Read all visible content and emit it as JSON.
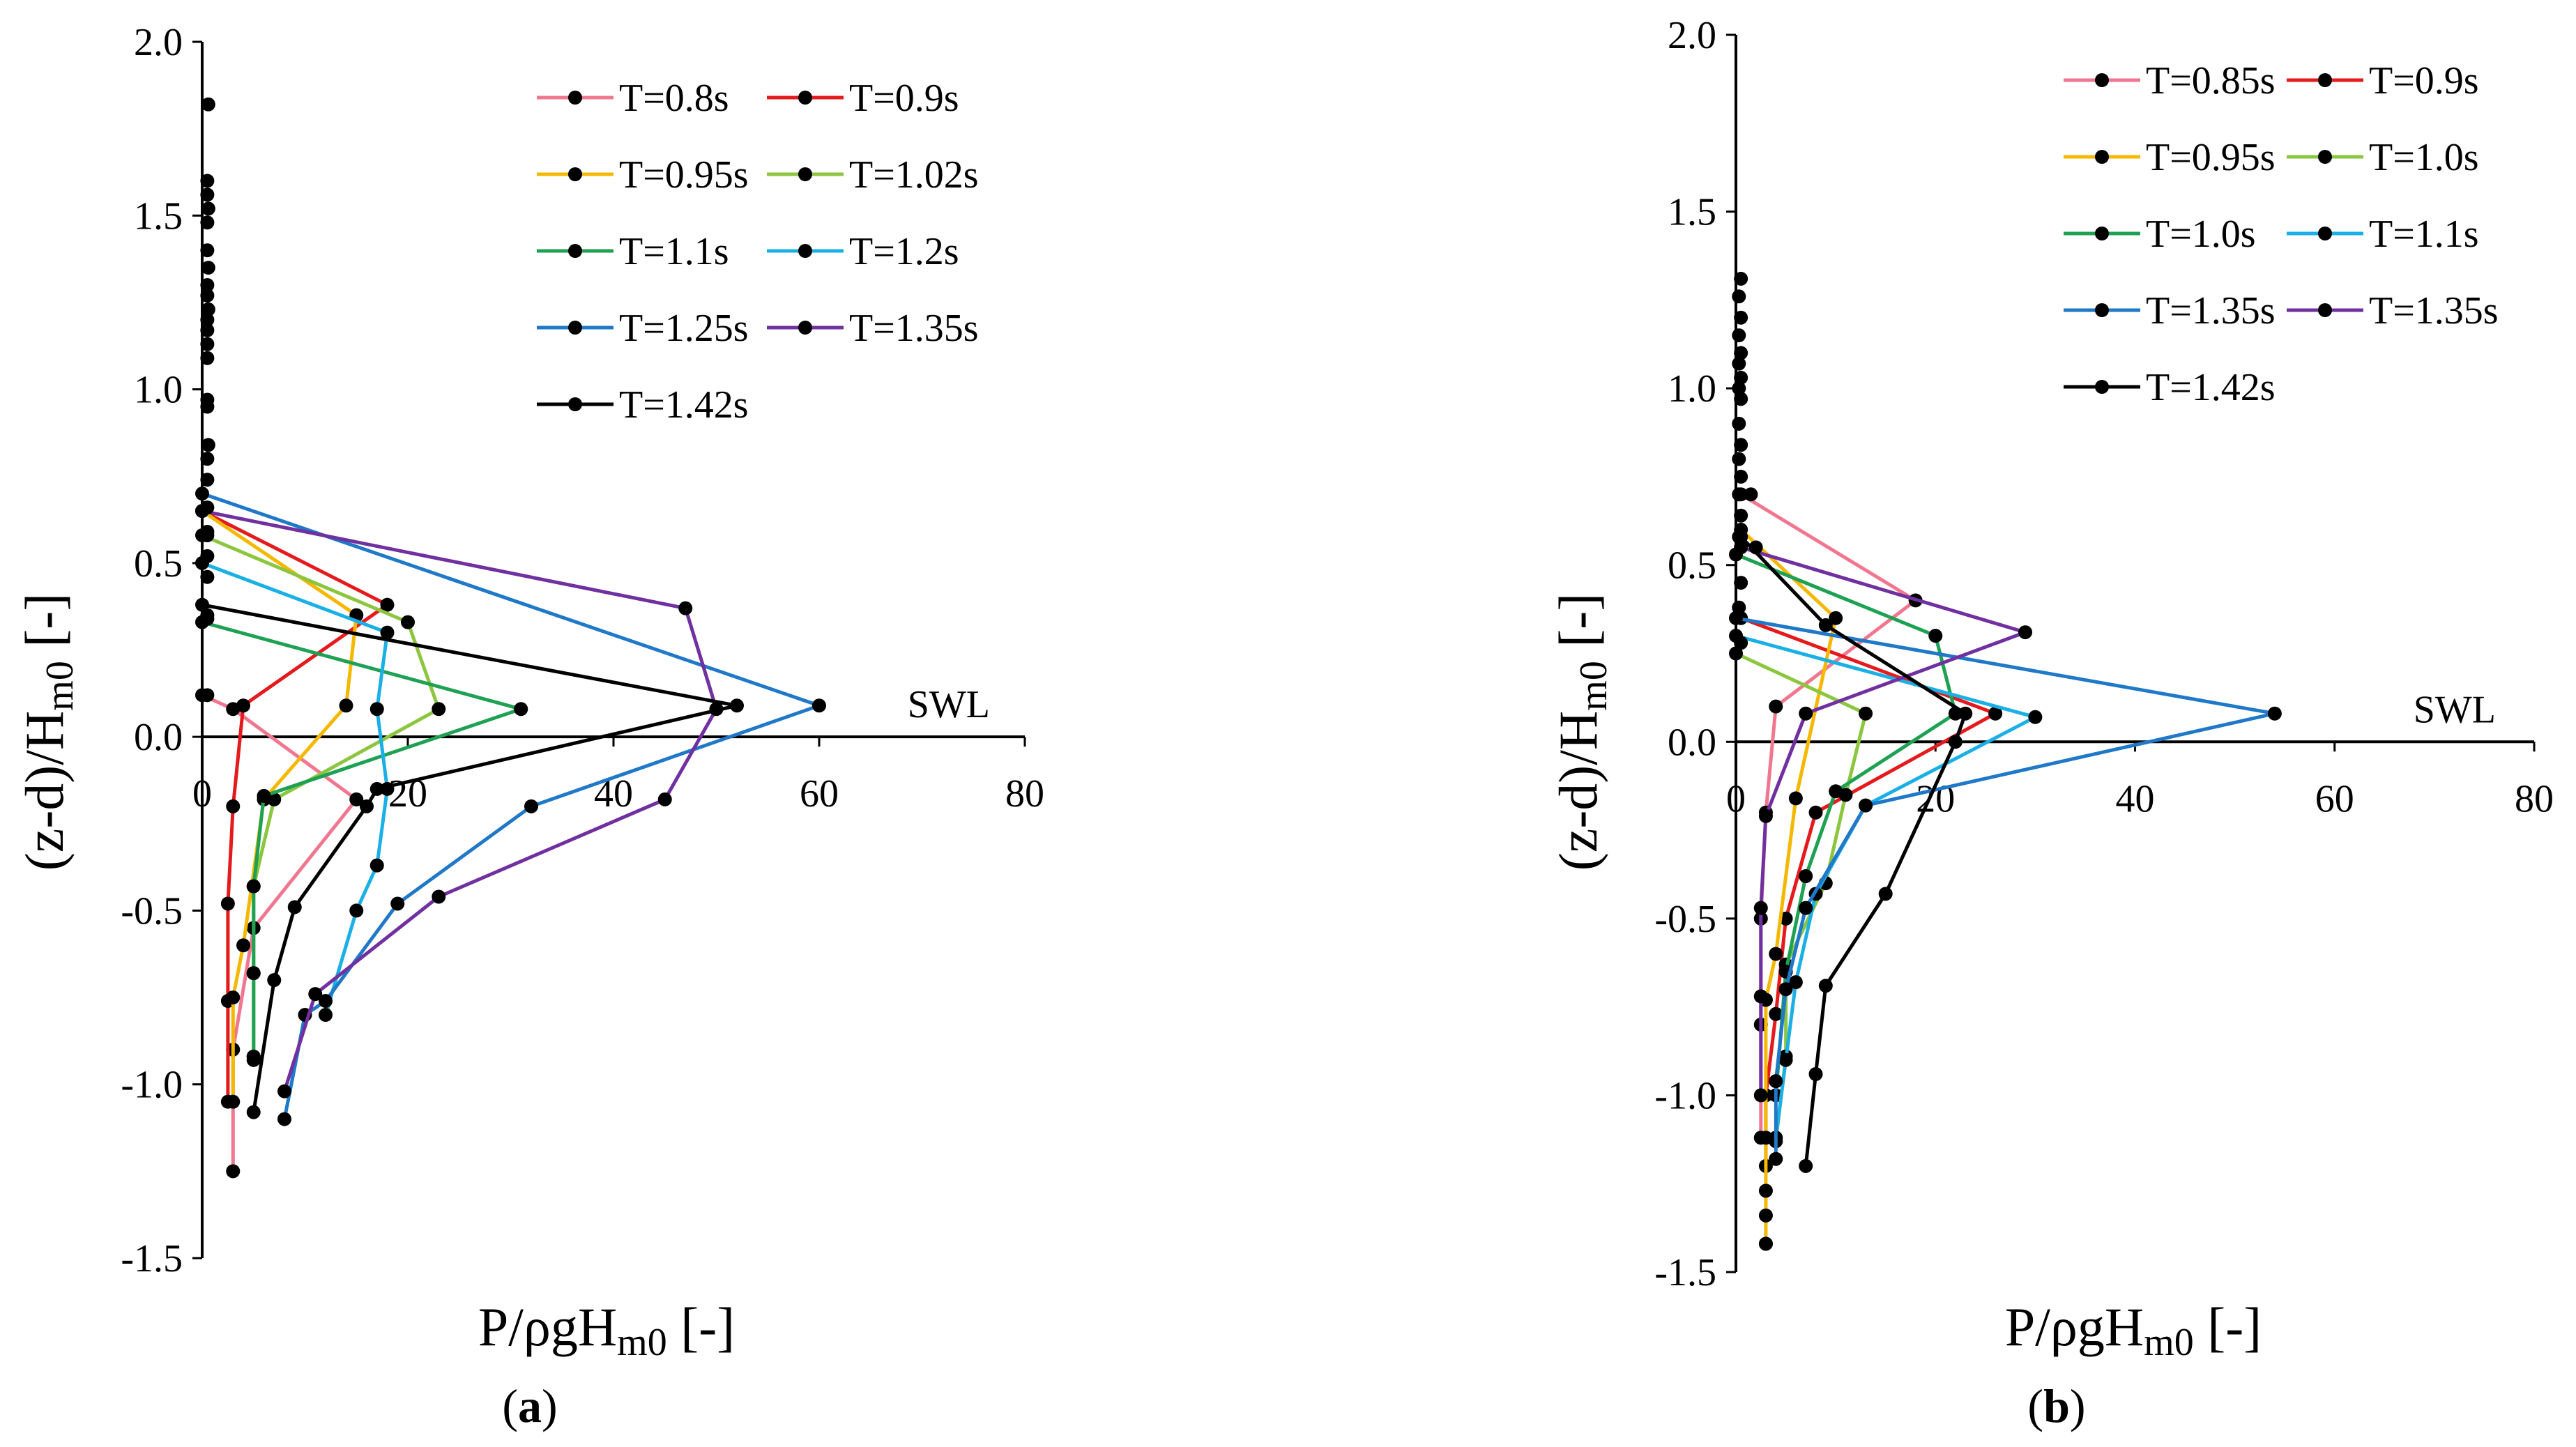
{
  "figure": {
    "panels": [
      {
        "label_open": "(",
        "label_letter": "a",
        "label_close": ")"
      },
      {
        "label_open": "(",
        "label_letter": "b",
        "label_close": ")"
      }
    ]
  },
  "chart_data": [
    {
      "type": "line",
      "panel": "a",
      "xlabel_main": "P/ρgH",
      "xlabel_sub": "m0",
      "xlabel_tail": " [-]",
      "ylabel_main": "(z-d)/H",
      "ylabel_sub": "m0",
      "ylabel_tail": " [-]",
      "xlim": [
        0,
        80
      ],
      "ylim": [
        -1.5,
        2.0
      ],
      "xticks": [
        0,
        20,
        40,
        60,
        80
      ],
      "xtick_labels": [
        "0",
        "20",
        "40",
        "60",
        "80"
      ],
      "yticks": [
        -1.5,
        -1.0,
        -0.5,
        0.0,
        0.5,
        1.0,
        1.5,
        2.0
      ],
      "ytick_labels": [
        "-1.5",
        "-1.0",
        "-0.5",
        "0.0",
        "0.5",
        "1.0",
        "1.5",
        "2.0"
      ],
      "reference_line": {
        "y": 0,
        "label": "SWL"
      },
      "legend_position": "top-right",
      "series": [
        {
          "name": "T=0.8s",
          "color": "#f0778f",
          "x": [
            0,
            3,
            15,
            5,
            3,
            3
          ],
          "y": [
            0.12,
            0.08,
            -0.18,
            -0.55,
            -0.9,
            -1.25
          ]
        },
        {
          "name": "T=0.9s",
          "color": "#e41a1c",
          "x": [
            0,
            18,
            4,
            3,
            2.5,
            2.5,
            2.5
          ],
          "y": [
            0.65,
            0.38,
            0.09,
            -0.2,
            -0.48,
            -0.76,
            -1.05
          ]
        },
        {
          "name": "T=0.95s",
          "color": "#f5b800",
          "x": [
            0,
            15,
            14,
            6,
            4,
            3,
            3
          ],
          "y": [
            0.65,
            0.35,
            0.09,
            -0.18,
            -0.6,
            -0.75,
            -1.05
          ]
        },
        {
          "name": "T=1.02s",
          "color": "#8cc63f",
          "x": [
            0,
            20,
            23,
            7,
            5,
            5,
            5
          ],
          "y": [
            0.58,
            0.33,
            0.08,
            -0.18,
            -0.43,
            -0.68,
            -0.92
          ]
        },
        {
          "name": "T=1.1s",
          "color": "#1ea153",
          "x": [
            0,
            31,
            6,
            5,
            5,
            5,
            5
          ],
          "y": [
            0.33,
            0.08,
            -0.17,
            -0.43,
            -0.68,
            -0.92,
            -0.93
          ]
        },
        {
          "name": "T=1.2s",
          "color": "#1ab0e6",
          "x": [
            0,
            18,
            17,
            18,
            17,
            15,
            12
          ],
          "y": [
            0.5,
            0.3,
            0.08,
            -0.15,
            -0.37,
            -0.5,
            -0.8
          ]
        },
        {
          "name": "T=1.25s",
          "color": "#1f78c8",
          "x": [
            0,
            60,
            32,
            19,
            12,
            10,
            8
          ],
          "y": [
            0.7,
            0.09,
            -0.2,
            -0.48,
            -0.76,
            -0.8,
            -1.1
          ]
        },
        {
          "name": "T=1.35s",
          "color": "#7030a0",
          "x": [
            0,
            47,
            50,
            45,
            23,
            11,
            8
          ],
          "y": [
            0.65,
            0.37,
            0.08,
            -0.18,
            -0.46,
            -0.74,
            -1.02
          ]
        },
        {
          "name": "T=1.42s",
          "color": "#000000",
          "x": [
            0,
            52,
            17,
            16,
            9,
            7,
            5
          ],
          "y": [
            0.38,
            0.09,
            -0.15,
            -0.2,
            -0.49,
            -0.7,
            -1.08
          ]
        }
      ],
      "extra_markers": [
        {
          "x": [
            0.6,
            0.5,
            0.5,
            0.6,
            0.5,
            0.5,
            0.6,
            0.5,
            0.5,
            0.6,
            0.5,
            0.5,
            0.5,
            0.5,
            0.5,
            0.5,
            0.6,
            0.5,
            0.5,
            0.5,
            0.5,
            0.5,
            0.5,
            0.5,
            0.5,
            0.5,
            0.5
          ],
          "y": [
            1.82,
            1.6,
            1.56,
            1.52,
            1.48,
            1.4,
            1.35,
            1.3,
            1.27,
            1.23,
            1.2,
            1.17,
            1.13,
            1.09,
            0.97,
            0.95,
            0.84,
            0.8,
            0.74,
            0.66,
            0.59,
            0.52,
            0.46,
            0.35,
            0.34,
            0.12,
            0.58
          ]
        }
      ]
    },
    {
      "type": "line",
      "panel": "b",
      "xlabel_main": "P/ρgH",
      "xlabel_sub": "m0",
      "xlabel_tail": " [-]",
      "ylabel_main": "(z-d)/H",
      "ylabel_sub": "m0",
      "ylabel_tail": " [-]",
      "xlim": [
        0,
        80
      ],
      "ylim": [
        -1.5,
        2.0
      ],
      "xticks": [
        0,
        20,
        40,
        60,
        80
      ],
      "xtick_labels": [
        "0",
        "20",
        "40",
        "60",
        "80"
      ],
      "yticks": [
        -1.5,
        -1.0,
        -0.5,
        0.0,
        0.5,
        1.0,
        1.5,
        2.0
      ],
      "ytick_labels": [
        "-1.5",
        "-1.0",
        "-0.5",
        "0.0",
        "0.5",
        "1.0",
        "1.5",
        "2.0"
      ],
      "reference_line": {
        "y": 0,
        "label": "SWL"
      },
      "legend_position": "top-right",
      "series": [
        {
          "name": "T=0.85s",
          "color": "#f0778f",
          "x": [
            0.5,
            18,
            4,
            3,
            2.5,
            2.5,
            2.5
          ],
          "y": [
            0.7,
            0.4,
            0.1,
            -0.2,
            -0.5,
            -0.8,
            -1.12
          ]
        },
        {
          "name": "T=0.9s",
          "color": "#e41a1c",
          "x": [
            0.5,
            26,
            8,
            5,
            4,
            3,
            3
          ],
          "y": [
            0.35,
            0.08,
            -0.2,
            -0.5,
            -0.77,
            -1.0,
            -1.2
          ]
        },
        {
          "name": "T=0.95s",
          "color": "#f5b800",
          "x": [
            0.5,
            10,
            6,
            4,
            3,
            3,
            3
          ],
          "y": [
            0.6,
            0.35,
            -0.16,
            -0.6,
            -0.73,
            -1.12,
            -1.42
          ]
        },
        {
          "name": "T=1.0s",
          "color": "#8cc63f",
          "x": [
            0,
            13,
            11,
            9,
            5,
            5,
            4
          ],
          "y": [
            0.25,
            0.08,
            -0.15,
            -0.4,
            -0.63,
            -0.89,
            -1.13
          ]
        },
        {
          "name": "T=1.0s",
          "color": "#1ea153",
          "x": [
            0,
            20,
            22,
            10,
            7,
            5,
            4
          ],
          "y": [
            0.53,
            0.3,
            0.08,
            -0.14,
            -0.38,
            -0.65,
            -1.0
          ]
        },
        {
          "name": "T=1.1s",
          "color": "#1ab0e6",
          "x": [
            0,
            30,
            13,
            8,
            6,
            5,
            4
          ],
          "y": [
            0.3,
            0.07,
            -0.18,
            -0.43,
            -0.68,
            -0.9,
            -1.12
          ]
        },
        {
          "name": "T=1.35s",
          "color": "#1f78c8",
          "x": [
            0,
            54,
            13,
            7,
            5,
            4,
            4
          ],
          "y": [
            0.35,
            0.08,
            -0.18,
            -0.47,
            -0.7,
            -0.96,
            -1.18
          ]
        },
        {
          "name": "T=1.35s",
          "color": "#7030a0",
          "x": [
            0.5,
            29,
            7,
            3,
            2.5,
            2.5,
            2.5
          ],
          "y": [
            0.55,
            0.31,
            0.08,
            -0.21,
            -0.47,
            -0.72,
            -1.0
          ]
        },
        {
          "name": "T=1.42s",
          "color": "#000000",
          "x": [
            0.5,
            9,
            23,
            22,
            15,
            9,
            8,
            7
          ],
          "y": [
            0.58,
            0.33,
            0.08,
            0.0,
            -0.43,
            -0.69,
            -0.94,
            -1.2
          ]
        }
      ],
      "extra_markers": [
        {
          "x": [
            0.5,
            0.3,
            0.5,
            0.3,
            0.5,
            0.3,
            0.5,
            0.3,
            0.5,
            0.3,
            0.5,
            0.3,
            0.5,
            0.3,
            0.5,
            0.3,
            1.5,
            2,
            0.5,
            0.3,
            0.5,
            3,
            3,
            3
          ],
          "y": [
            1.31,
            1.26,
            1.2,
            1.15,
            1.1,
            1.07,
            1.03,
            1.0,
            0.97,
            0.9,
            0.84,
            0.8,
            0.75,
            0.7,
            0.64,
            0.58,
            0.7,
            0.55,
            0.45,
            0.38,
            0.28,
            -1.27,
            -1.34,
            -1.42
          ]
        }
      ]
    }
  ]
}
